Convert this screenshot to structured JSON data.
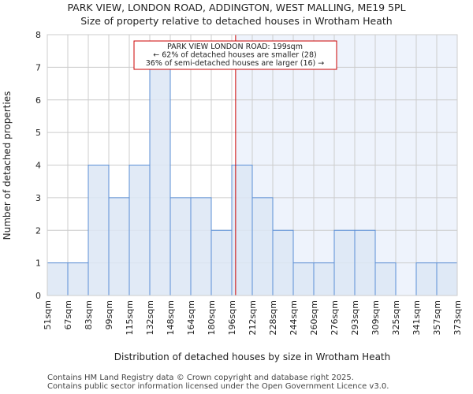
{
  "chart_data": {
    "type": "bar",
    "title": "PARK VIEW, LONDON ROAD, ADDINGTON, WEST MALLING, ME19 5PL",
    "subtitle": "Size of property relative to detached houses in Wrotham Heath",
    "xlabel": "Distribution of detached houses by size in Wrotham Heath",
    "ylabel": "Number of detached properties",
    "tick_labels": [
      "51sqm",
      "67sqm",
      "83sqm",
      "99sqm",
      "115sqm",
      "132sqm",
      "148sqm",
      "164sqm",
      "180sqm",
      "196sqm",
      "212sqm",
      "228sqm",
      "244sqm",
      "260sqm",
      "276sqm",
      "293sqm",
      "309sqm",
      "325sqm",
      "341sqm",
      "357sqm",
      "373sqm"
    ],
    "bin_edges": [
      51,
      67,
      83,
      99,
      115,
      132,
      148,
      164,
      180,
      196,
      212,
      228,
      244,
      260,
      276,
      293,
      309,
      325,
      341,
      357,
      373
    ],
    "values": [
      1,
      1,
      4,
      3,
      4,
      7,
      3,
      3,
      2,
      4,
      3,
      2,
      1,
      1,
      2,
      2,
      1,
      0,
      1,
      1
    ],
    "ylim": [
      0,
      8
    ],
    "yticks": [
      "0",
      "1",
      "2",
      "3",
      "4",
      "5",
      "6",
      "7",
      "8"
    ],
    "grid": true,
    "marker": {
      "value": 199,
      "color": "#cc0000"
    },
    "annotation": [
      "PARK VIEW LONDON ROAD: 199sqm",
      "← 62% of detached houses are smaller (28)",
      "36% of semi-detached houses are larger (16) →"
    ],
    "colors": {
      "bar_fill": "#dce6f4",
      "bar_edge": "#5b8fd6",
      "shade": "#eef3fc",
      "grid": "#cccccc"
    }
  },
  "footer": [
    "Contains HM Land Registry data © Crown copyright and database right 2025.",
    "Contains public sector information licensed under the Open Government Licence v3.0."
  ]
}
